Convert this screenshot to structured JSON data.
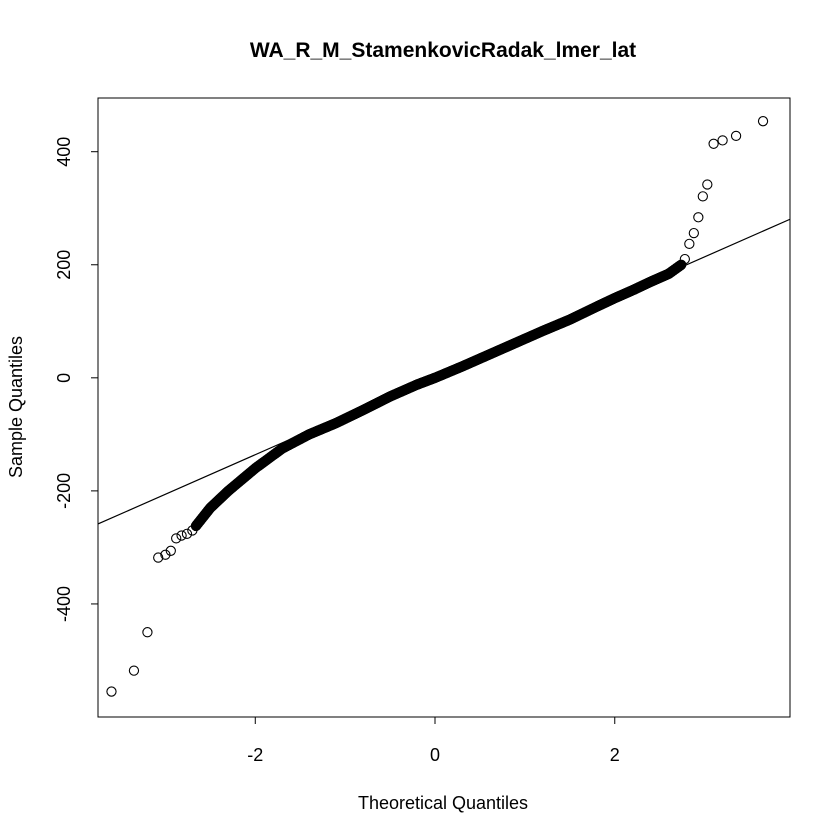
{
  "chart_data": {
    "type": "scatter",
    "title": "WA_R_M_StamenkovicRadak_lmer_lat",
    "xlabel": "Theoretical Quantiles",
    "ylabel": "Sample Quantiles",
    "xlim": [
      -3.75,
      3.95
    ],
    "ylim": [
      -600,
      495
    ],
    "x_ticks": [
      -2,
      0,
      2
    ],
    "x_tick_labels": [
      "-2",
      "0",
      "2"
    ],
    "y_ticks": [
      -400,
      -200,
      0,
      200,
      400
    ],
    "y_tick_labels": [
      "-400",
      "-200",
      "0",
      "200",
      "400"
    ],
    "grid": false,
    "legend": "none",
    "reference_line": {
      "slope": 70.0,
      "intercept": 4.0
    },
    "marker_color": "#000000",
    "line_color": "#000000",
    "outliers": {
      "x": [
        -3.6,
        -3.35,
        -3.2,
        -3.08,
        -3.0,
        -2.94,
        -2.88,
        -2.82,
        -2.76,
        -2.7,
        2.78,
        2.83,
        2.88,
        2.93,
        2.98,
        3.03,
        3.1,
        3.2,
        3.35,
        3.65
      ],
      "y": [
        -555,
        -518,
        -450,
        -318,
        -313,
        -306,
        -284,
        -279,
        -276,
        -270,
        210,
        237,
        256,
        284,
        321,
        342,
        414,
        420,
        428,
        454
      ]
    },
    "body_anchor_x": [
      -2.66,
      -2.5,
      -2.3,
      -2.0,
      -1.7,
      -1.4,
      -1.1,
      -0.8,
      -0.5,
      -0.2,
      0.0,
      0.3,
      0.6,
      0.9,
      1.2,
      1.5,
      1.8,
      2.0,
      2.2,
      2.4,
      2.6,
      2.74
    ],
    "body_anchor_y": [
      -262,
      -230,
      -200,
      -160,
      -125,
      -100,
      -80,
      -57,
      -33,
      -12,
      0,
      20,
      41,
      62,
      83,
      103,
      126,
      141,
      155,
      170,
      184,
      200
    ]
  }
}
